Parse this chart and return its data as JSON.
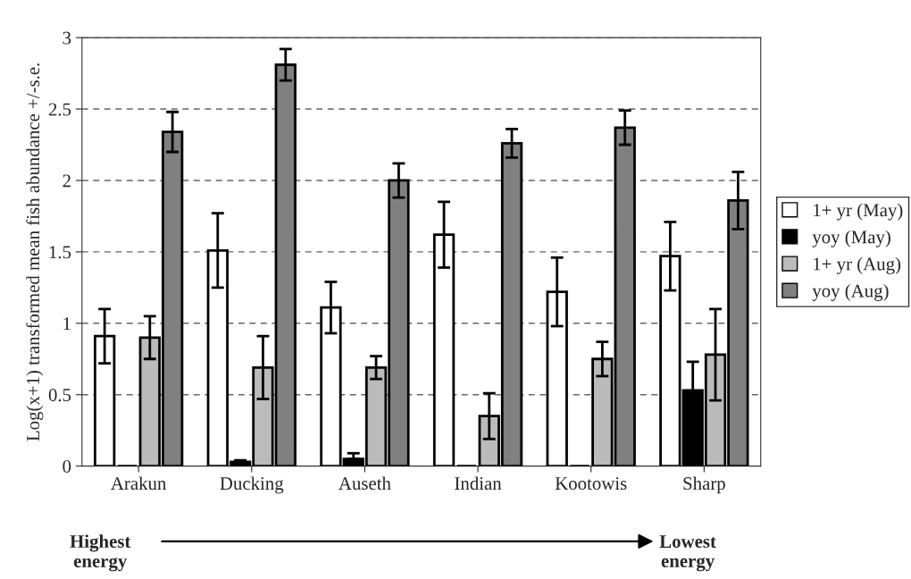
{
  "chart_data": {
    "type": "bar",
    "ylabel": "Log(x+1) transformed mean fish abundance +/-s.e.",
    "categories": [
      "Arakun",
      "Ducking",
      "Auseth",
      "Indian",
      "Kootowis",
      "Sharp"
    ],
    "series": [
      {
        "name": "1+ yr (May)",
        "color": "#ffffff",
        "values": [
          0.91,
          1.51,
          1.11,
          1.62,
          1.22,
          1.47
        ],
        "errors": [
          0.19,
          0.26,
          0.18,
          0.23,
          0.24,
          0.24
        ]
      },
      {
        "name": "yoy (May)",
        "color": "#000000",
        "values": [
          0,
          0.03,
          0.05,
          0,
          0,
          0.53
        ],
        "errors": [
          null,
          [
            0.03,
            0.04
          ],
          [
            0.05,
            0.09
          ],
          null,
          null,
          0.2
        ]
      },
      {
        "name": "1+ yr (Aug)",
        "color": "#bbbbbb",
        "values": [
          0.9,
          0.69,
          0.69,
          0.35,
          0.75,
          0.78
        ],
        "errors": [
          0.15,
          0.22,
          0.08,
          0.16,
          0.12,
          0.32
        ]
      },
      {
        "name": "yoy (Aug)",
        "color": "#808080",
        "values": [
          2.34,
          2.81,
          2.0,
          2.26,
          2.37,
          1.86
        ],
        "errors": [
          0.14,
          0.11,
          0.12,
          0.1,
          0.12,
          0.2
        ]
      }
    ],
    "ylim": [
      0,
      3
    ],
    "yticks": [
      0,
      0.5,
      1,
      1.5,
      2,
      2.5,
      3
    ],
    "grid": "y",
    "legend": "right",
    "annotations": [
      "Highest\nenergy",
      "Lowest\nenergy"
    ]
  }
}
